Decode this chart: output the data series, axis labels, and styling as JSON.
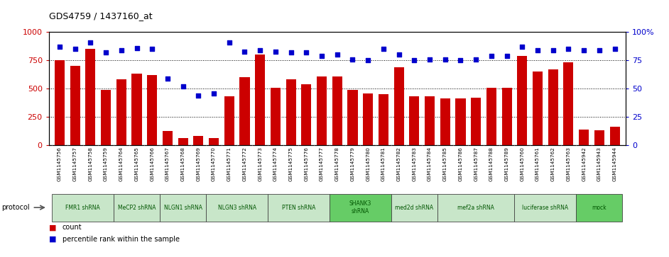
{
  "title": "GDS4759 / 1437160_at",
  "samples": [
    "GSM1145756",
    "GSM1145757",
    "GSM1145758",
    "GSM1145759",
    "GSM1145764",
    "GSM1145765",
    "GSM1145766",
    "GSM1145767",
    "GSM1145768",
    "GSM1145769",
    "GSM1145770",
    "GSM1145771",
    "GSM1145772",
    "GSM1145773",
    "GSM1145774",
    "GSM1145775",
    "GSM1145776",
    "GSM1145777",
    "GSM1145778",
    "GSM1145779",
    "GSM1145780",
    "GSM1145781",
    "GSM1145782",
    "GSM1145783",
    "GSM1145784",
    "GSM1145785",
    "GSM1145786",
    "GSM1145787",
    "GSM1145788",
    "GSM1145789",
    "GSM1145760",
    "GSM1145761",
    "GSM1145762",
    "GSM1145763",
    "GSM1145942",
    "GSM1145943",
    "GSM1145944"
  ],
  "counts": [
    750,
    700,
    850,
    490,
    580,
    630,
    620,
    125,
    65,
    80,
    65,
    430,
    600,
    800,
    510,
    580,
    540,
    610,
    610,
    490,
    460,
    450,
    690,
    430,
    430,
    415,
    415,
    420,
    510,
    510,
    790,
    650,
    670,
    730,
    140,
    130,
    165
  ],
  "percentiles": [
    87,
    85,
    91,
    82,
    84,
    86,
    85,
    59,
    52,
    44,
    46,
    91,
    83,
    84,
    83,
    82,
    82,
    79,
    80,
    76,
    75,
    85,
    80,
    75,
    76,
    76,
    75,
    76,
    79,
    79,
    87,
    84,
    84,
    85,
    84,
    84,
    85
  ],
  "bar_color": "#cc0000",
  "dot_color": "#0000cc",
  "protocol_groups": [
    {
      "label": "FMR1 shRNA",
      "start": 0,
      "end": 3,
      "color": "#c8e6c9"
    },
    {
      "label": "MeCP2 shRNA",
      "start": 4,
      "end": 6,
      "color": "#c8e6c9"
    },
    {
      "label": "NLGN1 shRNA",
      "start": 7,
      "end": 9,
      "color": "#c8e6c9"
    },
    {
      "label": "NLGN3 shRNA",
      "start": 10,
      "end": 13,
      "color": "#c8e6c9"
    },
    {
      "label": "PTEN shRNA",
      "start": 14,
      "end": 17,
      "color": "#c8e6c9"
    },
    {
      "label": "SHANK3\nshRNA",
      "start": 18,
      "end": 21,
      "color": "#66cc66"
    },
    {
      "label": "med2d shRNA",
      "start": 22,
      "end": 24,
      "color": "#c8e6c9"
    },
    {
      "label": "mef2a shRNA",
      "start": 25,
      "end": 29,
      "color": "#c8e6c9"
    },
    {
      "label": "luciferase shRNA",
      "start": 30,
      "end": 33,
      "color": "#c8e6c9"
    },
    {
      "label": "mock",
      "start": 34,
      "end": 36,
      "color": "#66cc66"
    }
  ]
}
